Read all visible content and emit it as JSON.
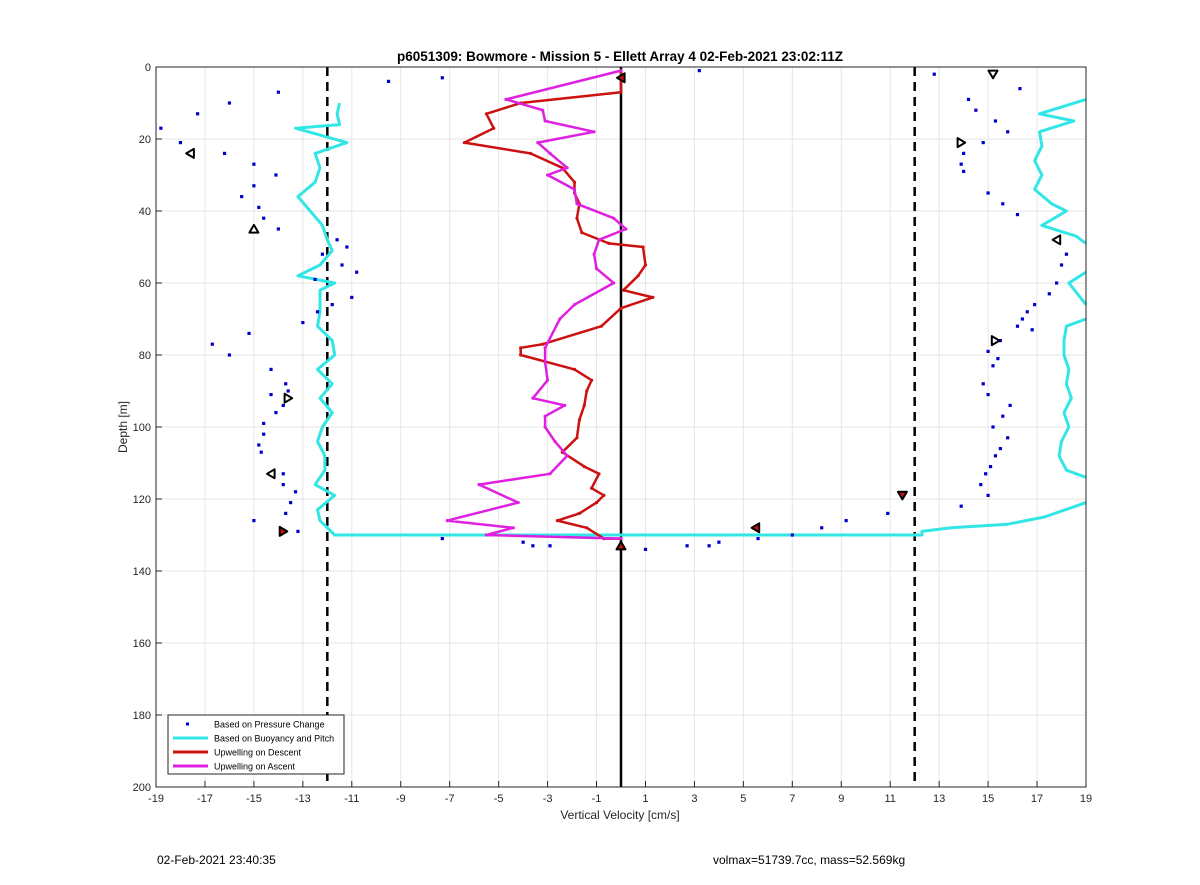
{
  "footer": {
    "left": "02-Feb-2021 23:40:35",
    "right": "volmax=51739.7cc, mass=52.569kg"
  },
  "colors": {
    "pressure": "#0000cc",
    "buoyancy": "#33e6e6",
    "descent": "#cc1111",
    "ascent": "#e020e0"
  },
  "chart_data": {
    "type": "line",
    "title": "p6051309: Bowmore - Mission 5 - Ellett Array 4 02-Feb-2021 23:02:11Z",
    "xlabel": "Vertical Velocity [cm/s]",
    "ylabel": "Depth [m]",
    "xlim": [
      -19,
      19
    ],
    "ylim": [
      0,
      200
    ],
    "y_reversed": true,
    "grid": true,
    "xticks": [
      -19,
      -17,
      -15,
      -13,
      -11,
      -9,
      -7,
      -5,
      -3,
      -1,
      1,
      3,
      5,
      7,
      9,
      11,
      13,
      15,
      17,
      19
    ],
    "yticks": [
      0,
      20,
      40,
      60,
      80,
      100,
      120,
      140,
      160,
      180,
      200
    ],
    "legend_position": "bottom-left",
    "reference_lines": [
      {
        "x": -12,
        "style": "dashed"
      },
      {
        "x": 12,
        "style": "dashed"
      },
      {
        "x": 0,
        "style": "solid"
      }
    ],
    "series": [
      {
        "name": "Based on Pressure Change",
        "style": "points",
        "points": [
          [
            3.2,
            1
          ],
          [
            12.8,
            2
          ],
          [
            -7.3,
            3
          ],
          [
            16.3,
            6
          ],
          [
            -9.5,
            4
          ],
          [
            -14,
            7
          ],
          [
            14.2,
            9
          ],
          [
            -16,
            10
          ],
          [
            14.5,
            12
          ],
          [
            -17.3,
            13
          ],
          [
            15.3,
            15
          ],
          [
            -18.8,
            17
          ],
          [
            15.8,
            18
          ],
          [
            14.8,
            21
          ],
          [
            -18,
            21
          ],
          [
            14,
            24
          ],
          [
            -16.2,
            24
          ],
          [
            13.9,
            27
          ],
          [
            -15,
            27
          ],
          [
            14,
            29
          ],
          [
            -14.1,
            30
          ],
          [
            -15,
            33
          ],
          [
            15,
            35
          ],
          [
            -15.5,
            36
          ],
          [
            15.6,
            38
          ],
          [
            -14.8,
            39
          ],
          [
            16.2,
            41
          ],
          [
            -14.6,
            42
          ],
          [
            -14,
            45
          ],
          [
            -11.6,
            48
          ],
          [
            -11.2,
            50
          ],
          [
            -12.2,
            52
          ],
          [
            -11.4,
            55
          ],
          [
            -10.8,
            57
          ],
          [
            -12.5,
            59
          ],
          [
            -11,
            64
          ],
          [
            -11.8,
            66
          ],
          [
            -12.4,
            68
          ],
          [
            -13,
            71
          ],
          [
            -15.2,
            74
          ],
          [
            -16.7,
            77
          ],
          [
            -16,
            80
          ],
          [
            16.8,
            73
          ],
          [
            17.5,
            63
          ],
          [
            17.8,
            60
          ],
          [
            18,
            55
          ],
          [
            18.2,
            52
          ],
          [
            16.9,
            66
          ],
          [
            16.6,
            68
          ],
          [
            16.4,
            70
          ],
          [
            16.2,
            72
          ],
          [
            15.5,
            76
          ],
          [
            15,
            79
          ],
          [
            15.4,
            81
          ],
          [
            15.2,
            83
          ],
          [
            14.8,
            88
          ],
          [
            15,
            91
          ],
          [
            -14.3,
            84
          ],
          [
            -13.7,
            88
          ],
          [
            -13.6,
            90
          ],
          [
            -14.3,
            91
          ],
          [
            -13.8,
            94
          ],
          [
            -14.1,
            96
          ],
          [
            15.9,
            94
          ],
          [
            15.6,
            97
          ],
          [
            15.2,
            100
          ],
          [
            15.8,
            103
          ],
          [
            -14.6,
            99
          ],
          [
            -14.6,
            102
          ],
          [
            -14.8,
            105
          ],
          [
            -14.7,
            107
          ],
          [
            15.5,
            106
          ],
          [
            15.3,
            108
          ],
          [
            15.1,
            111
          ],
          [
            14.9,
            113
          ],
          [
            -13.8,
            113
          ],
          [
            -13.8,
            116
          ],
          [
            -13.3,
            118
          ],
          [
            14.7,
            116
          ],
          [
            15,
            119
          ],
          [
            -13.5,
            121
          ],
          [
            -13.7,
            124
          ],
          [
            13.9,
            122
          ],
          [
            -15,
            126
          ],
          [
            -13.2,
            129
          ],
          [
            10.9,
            124
          ],
          [
            9.2,
            126
          ],
          [
            8.2,
            128
          ],
          [
            7,
            130
          ],
          [
            5.6,
            131
          ],
          [
            4,
            132
          ],
          [
            3.6,
            133
          ],
          [
            2.7,
            133
          ],
          [
            1,
            134
          ],
          [
            -4,
            132
          ],
          [
            -3.6,
            133
          ],
          [
            -2.9,
            133
          ],
          [
            -7.3,
            131
          ]
        ]
      },
      {
        "name": "Based on Buoyancy and Pitch",
        "style": "line",
        "segments": [
          [
            [
              -11.5,
              10
            ],
            [
              -11.6,
              13
            ],
            [
              -11.5,
              16
            ],
            [
              -13.3,
              17
            ],
            [
              -11.2,
              21
            ],
            [
              -12.5,
              24
            ],
            [
              -12.3,
              28
            ],
            [
              -12.5,
              32
            ],
            [
              -13.2,
              36
            ],
            [
              -12.7,
              40
            ],
            [
              -12.2,
              44
            ],
            [
              -12.0,
              48
            ],
            [
              -11.8,
              51
            ],
            [
              -12.3,
              55
            ],
            [
              -13.2,
              58
            ],
            [
              -11.7,
              60
            ],
            [
              -12.3,
              62
            ],
            [
              -12.3,
              65
            ],
            [
              -12.3,
              68
            ],
            [
              -12.4,
              72
            ],
            [
              -11.8,
              76
            ],
            [
              -11.7,
              80
            ],
            [
              -12.4,
              84
            ],
            [
              -11.8,
              88
            ],
            [
              -12.3,
              92
            ],
            [
              -11.8,
              96
            ],
            [
              -12.2,
              100
            ],
            [
              -12.4,
              104
            ],
            [
              -12.1,
              108
            ],
            [
              -12.1,
              112
            ],
            [
              -12.5,
              116
            ],
            [
              -11.7,
              119
            ],
            [
              -12.4,
              123
            ],
            [
              -12.3,
              126
            ],
            [
              -11.7,
              130
            ],
            [
              11.5,
              130
            ],
            [
              12.3,
              130
            ],
            [
              12.3,
              129
            ],
            [
              13.5,
              128
            ],
            [
              15.8,
              127
            ],
            [
              17.3,
              125
            ],
            [
              19,
              121
            ]
          ],
          [
            [
              19,
              9
            ],
            [
              17.1,
              13
            ],
            [
              18.5,
              15
            ],
            [
              17.1,
              18
            ],
            [
              17.2,
              22
            ],
            [
              16.9,
              26
            ],
            [
              17.2,
              30
            ],
            [
              16.9,
              34
            ],
            [
              17.6,
              38
            ],
            [
              18.2,
              40
            ],
            [
              17.2,
              44
            ],
            [
              18.6,
              47
            ],
            [
              19,
              49
            ]
          ],
          [
            [
              19,
              57
            ],
            [
              18.3,
              60
            ],
            [
              19,
              66
            ]
          ],
          [
            [
              19,
              70
            ],
            [
              18.2,
              72
            ],
            [
              18.1,
              76
            ],
            [
              18.1,
              80
            ],
            [
              18.3,
              84
            ],
            [
              18.2,
              88
            ],
            [
              18.4,
              92
            ],
            [
              18.1,
              96
            ],
            [
              18.3,
              100
            ],
            [
              18.0,
              104
            ],
            [
              17.9,
              108
            ],
            [
              18.2,
              112
            ],
            [
              19,
              114
            ]
          ]
        ]
      },
      {
        "name": "Upwelling on Descent",
        "style": "line",
        "points": [
          [
            0,
            1
          ],
          [
            0,
            7
          ],
          [
            -4.1,
            10
          ],
          [
            -5.5,
            13
          ],
          [
            -5.2,
            17
          ],
          [
            -6.4,
            21
          ],
          [
            -3.7,
            24
          ],
          [
            -2.4,
            28
          ],
          [
            -1.9,
            32
          ],
          [
            -1.9,
            35
          ],
          [
            -1.7,
            38
          ],
          [
            -1.8,
            42
          ],
          [
            -1.6,
            46
          ],
          [
            -0.5,
            49
          ],
          [
            0.9,
            50
          ],
          [
            1,
            55
          ],
          [
            0.7,
            58
          ],
          [
            0.1,
            62
          ],
          [
            1.3,
            64
          ],
          [
            0,
            67
          ],
          [
            -0.8,
            72
          ],
          [
            -3.2,
            77
          ],
          [
            -4.1,
            78
          ],
          [
            -4.1,
            80
          ],
          [
            -1.9,
            84
          ],
          [
            -1.2,
            87
          ],
          [
            -1.4,
            90
          ],
          [
            -1.5,
            94
          ],
          [
            -1.7,
            98
          ],
          [
            -1.8,
            103
          ],
          [
            -2.4,
            107
          ],
          [
            -1.5,
            111
          ],
          [
            -0.9,
            113
          ],
          [
            -1.2,
            117
          ],
          [
            -0.7,
            119
          ],
          [
            -1,
            121
          ],
          [
            -1.7,
            124
          ],
          [
            -2.6,
            126
          ],
          [
            -1.4,
            128
          ],
          [
            -0.7,
            131
          ],
          [
            0,
            131
          ]
        ]
      },
      {
        "name": "Upwelling on Ascent",
        "style": "line",
        "points": [
          [
            0,
            1
          ],
          [
            -4.7,
            9
          ],
          [
            -3.2,
            12
          ],
          [
            -3.1,
            15
          ],
          [
            -1.1,
            18
          ],
          [
            -3.4,
            21
          ],
          [
            -2.9,
            24
          ],
          [
            -2.2,
            28
          ],
          [
            -3.0,
            30
          ],
          [
            -1.9,
            34
          ],
          [
            -1.8,
            38
          ],
          [
            -0.3,
            42
          ],
          [
            0.2,
            45
          ],
          [
            -0.9,
            48
          ],
          [
            -1.1,
            52
          ],
          [
            -1.0,
            56
          ],
          [
            -0.3,
            60
          ],
          [
            -1.9,
            66
          ],
          [
            -2.5,
            70
          ],
          [
            -3.1,
            78
          ],
          [
            -3.1,
            82
          ],
          [
            -3.0,
            87
          ],
          [
            -3.6,
            92
          ],
          [
            -2.3,
            94
          ],
          [
            -3.1,
            97
          ],
          [
            -3.1,
            100
          ],
          [
            -2.7,
            104
          ],
          [
            -2.2,
            108
          ],
          [
            -2.9,
            113
          ],
          [
            -5.8,
            116
          ],
          [
            -4.2,
            121
          ],
          [
            -7.1,
            126
          ],
          [
            -4.4,
            128
          ],
          [
            -5.5,
            130
          ],
          [
            0,
            131
          ]
        ]
      }
    ],
    "markers": [
      {
        "shape": "down",
        "color": "white",
        "x": 15.2,
        "y": 2
      },
      {
        "shape": "right",
        "color": "white",
        "x": 13.9,
        "y": 21
      },
      {
        "shape": "left",
        "color": "white",
        "x": -17.6,
        "y": 24
      },
      {
        "shape": "up",
        "color": "white",
        "x": -15,
        "y": 45
      },
      {
        "shape": "left",
        "color": "white",
        "x": 17.8,
        "y": 48
      },
      {
        "shape": "right",
        "color": "white",
        "x": 15.3,
        "y": 76
      },
      {
        "shape": "right",
        "color": "white",
        "x": -13.6,
        "y": 92
      },
      {
        "shape": "left",
        "color": "white",
        "x": -14.3,
        "y": 113
      },
      {
        "shape": "left",
        "color": "red",
        "x": 0,
        "y": 3
      },
      {
        "shape": "down",
        "color": "red",
        "x": 11.5,
        "y": 119
      },
      {
        "shape": "left",
        "color": "red",
        "x": 5.5,
        "y": 128
      },
      {
        "shape": "right",
        "color": "red",
        "x": -13.8,
        "y": 129
      },
      {
        "shape": "up",
        "color": "red",
        "x": 0,
        "y": 133
      }
    ]
  }
}
